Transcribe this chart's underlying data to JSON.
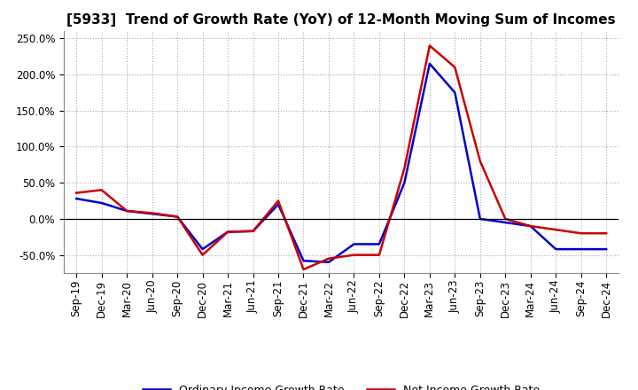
{
  "title": "[5933]  Trend of Growth Rate (YoY) of 12-Month Moving Sum of Incomes",
  "x_labels": [
    "Sep-19",
    "Dec-19",
    "Mar-20",
    "Jun-20",
    "Sep-20",
    "Dec-20",
    "Mar-21",
    "Jun-21",
    "Sep-21",
    "Dec-21",
    "Mar-22",
    "Jun-22",
    "Sep-22",
    "Dec-22",
    "Mar-23",
    "Jun-23",
    "Sep-23",
    "Dec-23",
    "Mar-24",
    "Jun-24",
    "Sep-24",
    "Dec-24"
  ],
  "ordinary_income": [
    28,
    22,
    11,
    7,
    3,
    -42,
    -18,
    -17,
    20,
    -58,
    -60,
    -35,
    -35,
    50,
    215,
    175,
    0,
    -5,
    -10,
    -42,
    -42,
    -42
  ],
  "net_income": [
    36,
    40,
    11,
    8,
    3,
    -50,
    -18,
    -17,
    25,
    -70,
    -55,
    -50,
    -50,
    70,
    240,
    210,
    80,
    0,
    -10,
    -15,
    -20,
    -20
  ],
  "ordinary_color": "#0000cc",
  "net_color": "#cc0000",
  "legend_ordinary": "Ordinary Income Growth Rate",
  "legend_net": "Net Income Growth Rate",
  "ylim_min": -75,
  "ylim_max": 260,
  "yticks": [
    -50,
    0,
    50,
    100,
    150,
    200,
    250
  ],
  "background_color": "#ffffff",
  "grid_color": "#aaaaaa",
  "title_fontsize": 11,
  "tick_fontsize": 8.5,
  "legend_fontsize": 9
}
